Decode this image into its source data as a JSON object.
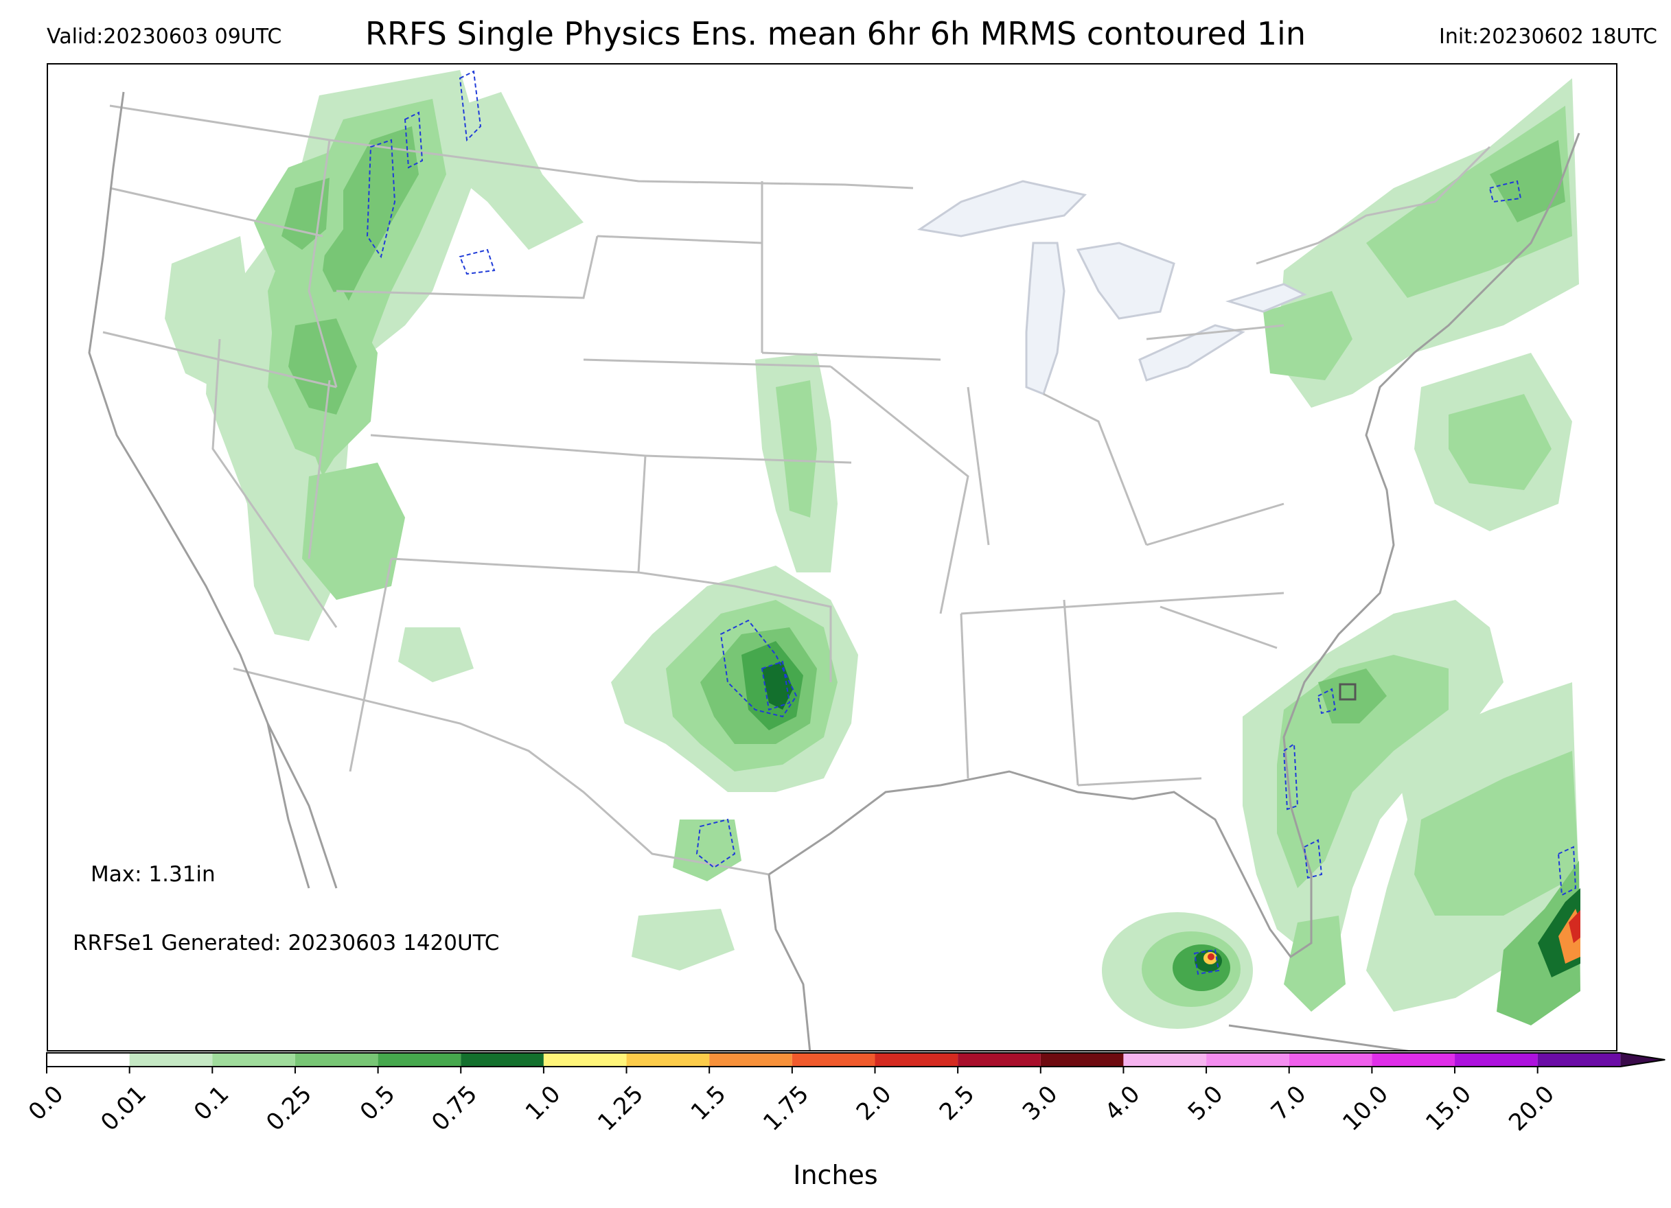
{
  "header": {
    "valid": "Valid:20230603 09UTC",
    "title": "RRFS Single Physics Ens. mean 6hr 6h MRMS contoured 1in",
    "init": "Init:20230602 18UTC"
  },
  "annotations": {
    "max": "Max: 1.31in",
    "generated": "RRFSe1 Generated: 20230603 1420UTC"
  },
  "colorbar": {
    "title": "Inches",
    "ticks": [
      "0.0",
      "0.01",
      "0.1",
      "0.25",
      "0.5",
      "0.75",
      "1.0",
      "1.25",
      "1.5",
      "1.75",
      "2.0",
      "2.5",
      "3.0",
      "4.0",
      "5.0",
      "7.0",
      "10.0",
      "15.0",
      "20.0"
    ],
    "colors": [
      "#ffffff",
      "#c5e8c4",
      "#a0dc9c",
      "#78c675",
      "#46a84d",
      "#13702d",
      "#fff57a",
      "#fccc4a",
      "#f7913a",
      "#f05a2c",
      "#d42a20",
      "#a80e2b",
      "#6e0a10",
      "#f6b4f0",
      "#f48ef0",
      "#f060ec",
      "#df2ee8",
      "#ad12dd",
      "#6b0ca6"
    ],
    "extend_color": "#3a0a4a"
  },
  "map": {
    "land_fill": "#ffffff",
    "lake_fill": "#eef2f8",
    "border_color": "#bdbdbd",
    "coast_color": "#9e9e9e",
    "contour_color": "#1f3bd8",
    "precip_colors": {
      "p001": "#c5e8c4",
      "p01": "#a0dc9c",
      "p025": "#78c675",
      "p05": "#46a84d",
      "p075": "#13702d",
      "p1": "#fff57a",
      "p125": "#fccc4a",
      "p15": "#f7913a",
      "p2": "#d42a20"
    }
  }
}
